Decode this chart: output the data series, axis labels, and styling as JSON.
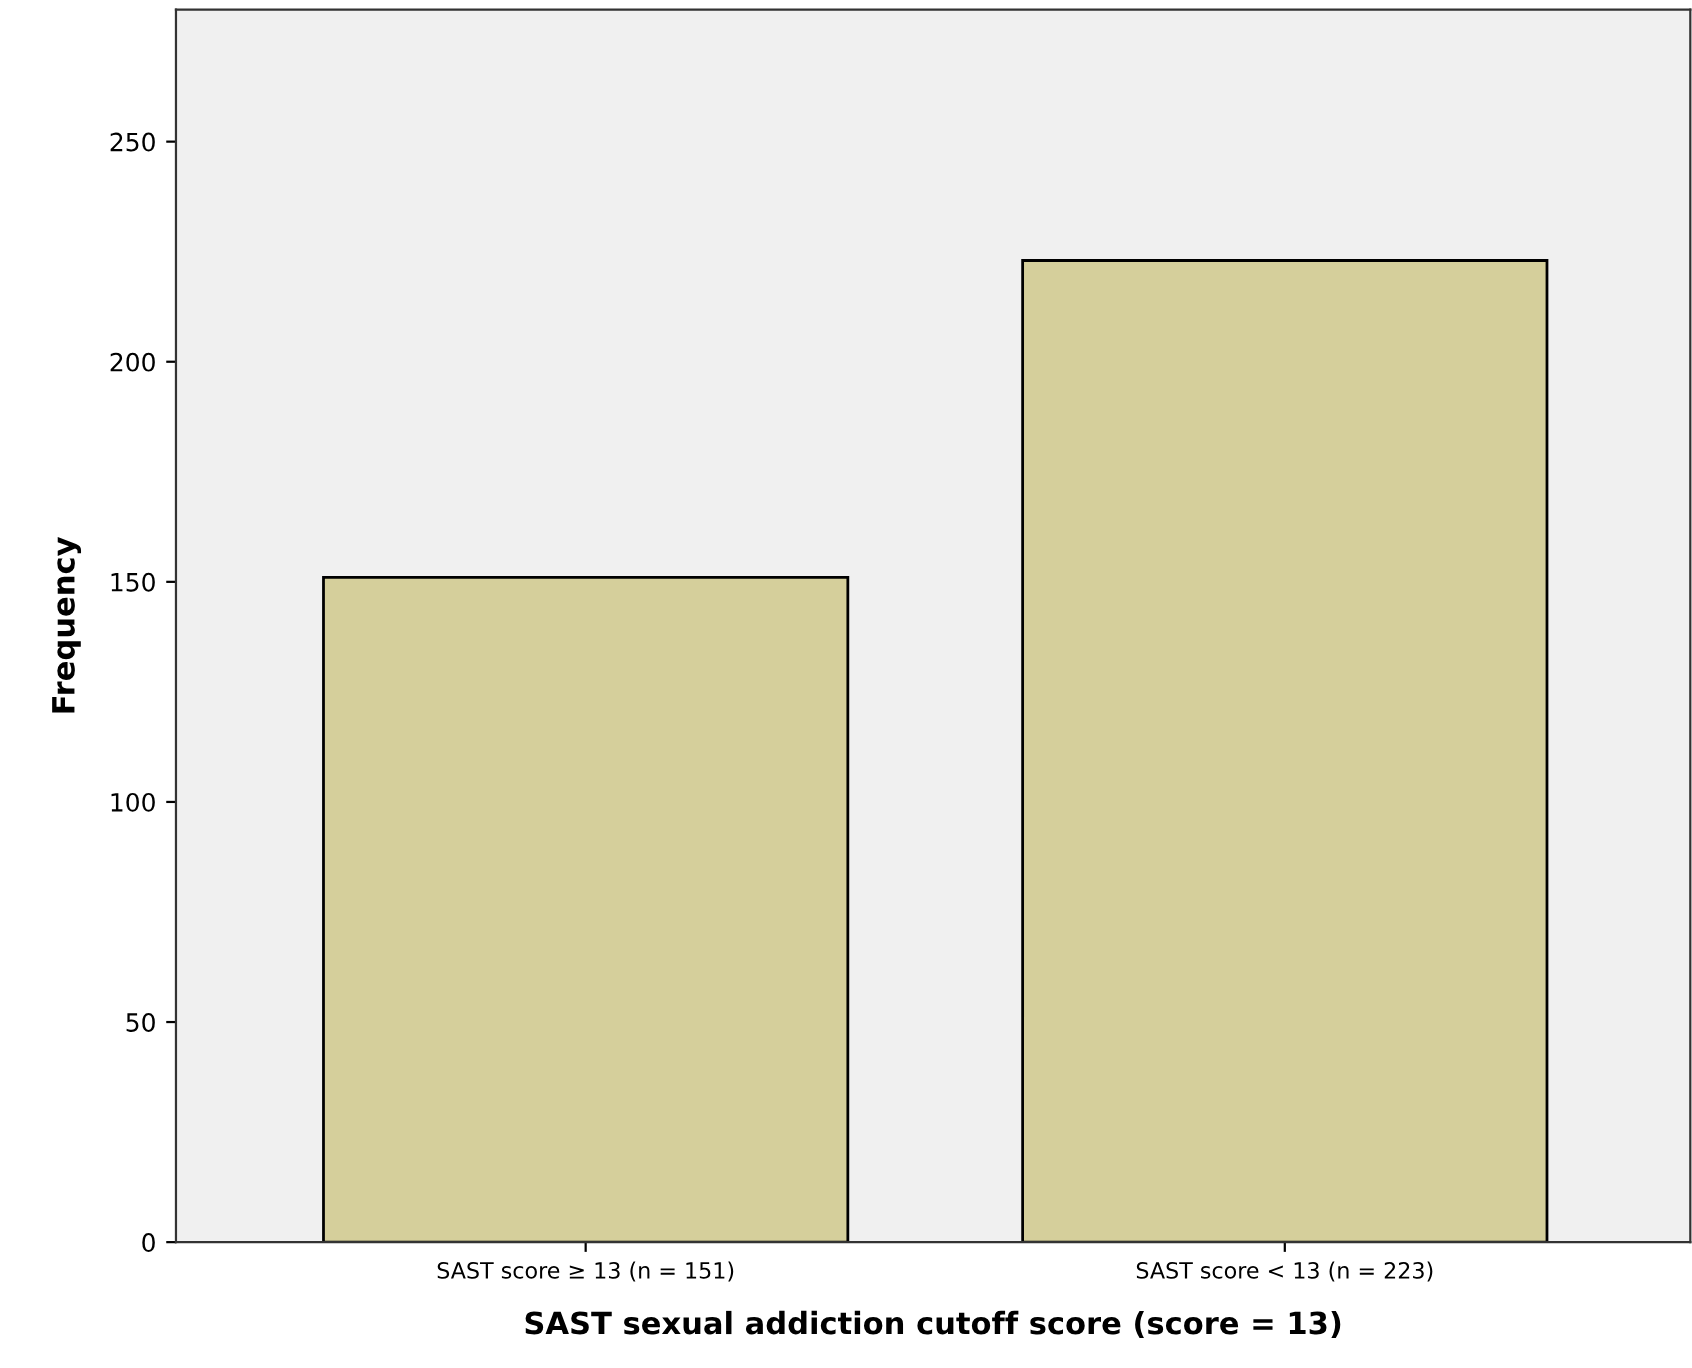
{
  "chart_data": {
    "type": "bar",
    "xlabel": "SAST sexual addiction cutoff score (score = 13)",
    "ylabel": "Frequency",
    "categories": [
      "SAST score ≥ 13 (n = 151)",
      "SAST score < 13 (n = 223)"
    ],
    "values": [
      151,
      223
    ],
    "color": "#d5cf9b",
    "ylim": [
      0,
      280
    ],
    "yticks": [
      0,
      50,
      100,
      150,
      200,
      250
    ],
    "grid": false
  }
}
